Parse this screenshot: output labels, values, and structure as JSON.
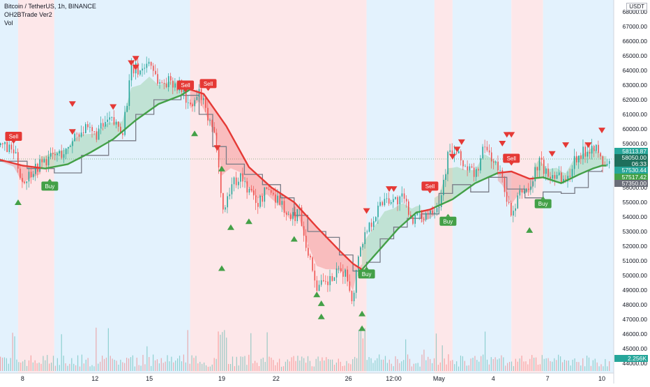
{
  "legend": {
    "symbol_line": "Bitcoin / TetherUS, 1h, BINANCE",
    "indicator_1": "OH2BTrade Ver2",
    "indicator_2": "Vol"
  },
  "currency": "USDT",
  "colors": {
    "up": "#26a69a",
    "down": "#ef5350",
    "buy": "#43a047",
    "sell": "#e53935",
    "trend_green": "#43a047",
    "trend_red": "#e53935",
    "step_line": "#787b86",
    "bg_blue": "#e3f2fd",
    "bg_red": "#fde7e9"
  },
  "chart_data": {
    "type": "candlestick",
    "title": "Bitcoin / TetherUS, 1h, BINANCE",
    "ylim": [
      44000,
      68500
    ],
    "y_ticks": [
      68000,
      67000,
      66000,
      65000,
      64000,
      63000,
      62000,
      61000,
      60000,
      59000,
      58000,
      57000,
      56000,
      55000,
      54000,
      53000,
      52000,
      51000,
      50000,
      49000,
      48000,
      47000,
      46000,
      45000,
      44000
    ],
    "y_tick_labels": [
      "68000.00",
      "67000.00",
      "66000.00",
      "65000.00",
      "64000.00",
      "63000.00",
      "62000.00",
      "61000.00",
      "60000.00",
      "59000.00",
      "58000.00",
      "57000.00",
      "56000.00",
      "55000.00",
      "54000.00",
      "53000.00",
      "52000.00",
      "51000.00",
      "50000.00",
      "49000.00",
      "48000.00",
      "47000.00",
      "46000.00",
      "45000.00",
      "44000.00"
    ],
    "x_ticks": [
      {
        "label": "8",
        "t": 5
      },
      {
        "label": "12",
        "t": 21
      },
      {
        "label": "15",
        "t": 33
      },
      {
        "label": "19",
        "t": 49
      },
      {
        "label": "22",
        "t": 61
      },
      {
        "label": "26",
        "t": 77
      },
      {
        "label": "12:00",
        "t": 87
      },
      {
        "label": "May",
        "t": 97
      },
      {
        "label": "4",
        "t": 109
      },
      {
        "label": "7",
        "t": 121
      },
      {
        "label": "10",
        "t": 133
      }
    ],
    "price_path": [
      {
        "t": 0,
        "v": 58900
      },
      {
        "t": 3,
        "v": 58400
      },
      {
        "t": 5,
        "v": 56300
      },
      {
        "t": 7,
        "v": 57200
      },
      {
        "t": 9,
        "v": 57700
      },
      {
        "t": 12,
        "v": 58200
      },
      {
        "t": 15,
        "v": 58500
      },
      {
        "t": 16,
        "v": 59500
      },
      {
        "t": 18,
        "v": 60000
      },
      {
        "t": 21,
        "v": 59600
      },
      {
        "t": 24,
        "v": 60600
      },
      {
        "t": 27,
        "v": 60000
      },
      {
        "t": 29,
        "v": 64100
      },
      {
        "t": 31,
        "v": 64000
      },
      {
        "t": 33,
        "v": 64700
      },
      {
        "t": 35,
        "v": 63100
      },
      {
        "t": 38,
        "v": 63300
      },
      {
        "t": 40,
        "v": 62800
      },
      {
        "t": 42,
        "v": 61300
      },
      {
        "t": 44,
        "v": 62500
      },
      {
        "t": 46,
        "v": 60500
      },
      {
        "t": 48,
        "v": 58800
      },
      {
        "t": 49,
        "v": 54200
      },
      {
        "t": 51,
        "v": 56200
      },
      {
        "t": 53,
        "v": 56800
      },
      {
        "t": 55,
        "v": 55700
      },
      {
        "t": 57,
        "v": 54900
      },
      {
        "t": 59,
        "v": 56000
      },
      {
        "t": 62,
        "v": 55000
      },
      {
        "t": 64,
        "v": 53700
      },
      {
        "t": 66,
        "v": 54500
      },
      {
        "t": 68,
        "v": 51500
      },
      {
        "t": 70,
        "v": 49200
      },
      {
        "t": 72,
        "v": 49400
      },
      {
        "t": 74,
        "v": 50000
      },
      {
        "t": 76,
        "v": 50300
      },
      {
        "t": 78,
        "v": 48300
      },
      {
        "t": 79,
        "v": 51500
      },
      {
        "t": 81,
        "v": 53200
      },
      {
        "t": 83,
        "v": 54300
      },
      {
        "t": 85,
        "v": 55400
      },
      {
        "t": 87,
        "v": 55100
      },
      {
        "t": 89,
        "v": 55200
      },
      {
        "t": 91,
        "v": 53900
      },
      {
        "t": 93,
        "v": 54000
      },
      {
        "t": 95,
        "v": 54500
      },
      {
        "t": 97,
        "v": 55000
      },
      {
        "t": 99,
        "v": 58400
      },
      {
        "t": 101,
        "v": 58200
      },
      {
        "t": 103,
        "v": 57300
      },
      {
        "t": 105,
        "v": 56900
      },
      {
        "t": 107,
        "v": 58800
      },
      {
        "t": 109,
        "v": 57800
      },
      {
        "t": 111,
        "v": 56500
      },
      {
        "t": 113,
        "v": 53800
      },
      {
        "t": 115,
        "v": 55800
      },
      {
        "t": 117,
        "v": 55900
      },
      {
        "t": 119,
        "v": 57900
      },
      {
        "t": 121,
        "v": 56700
      },
      {
        "t": 123,
        "v": 57100
      },
      {
        "t": 125,
        "v": 56300
      },
      {
        "t": 127,
        "v": 58100
      },
      {
        "t": 129,
        "v": 58400
      },
      {
        "t": 131,
        "v": 59000
      },
      {
        "t": 133,
        "v": 57600
      }
    ],
    "trend_line": [
      {
        "t": 0,
        "v": 57900
      },
      {
        "t": 5,
        "v": 57500
      },
      {
        "t": 10,
        "v": 57300
      },
      {
        "t": 15,
        "v": 57600
      },
      {
        "t": 20,
        "v": 58400
      },
      {
        "t": 25,
        "v": 59300
      },
      {
        "t": 30,
        "v": 60600
      },
      {
        "t": 35,
        "v": 61700
      },
      {
        "t": 40,
        "v": 62300
      },
      {
        "t": 42,
        "v": 62700
      },
      {
        "t": 45,
        "v": 62400
      },
      {
        "t": 50,
        "v": 60200
      },
      {
        "t": 55,
        "v": 57400
      },
      {
        "t": 60,
        "v": 56000
      },
      {
        "t": 65,
        "v": 55000
      },
      {
        "t": 70,
        "v": 53300
      },
      {
        "t": 75,
        "v": 51700
      },
      {
        "t": 78,
        "v": 50800
      },
      {
        "t": 80,
        "v": 50400
      },
      {
        "t": 84,
        "v": 51800
      },
      {
        "t": 88,
        "v": 53200
      },
      {
        "t": 92,
        "v": 54300
      },
      {
        "t": 95,
        "v": 54500
      },
      {
        "t": 100,
        "v": 55200
      },
      {
        "t": 105,
        "v": 56300
      },
      {
        "t": 110,
        "v": 57000
      },
      {
        "t": 113,
        "v": 57100
      },
      {
        "t": 117,
        "v": 56600
      },
      {
        "t": 120,
        "v": 56700
      },
      {
        "t": 124,
        "v": 56300
      },
      {
        "t": 128,
        "v": 56900
      },
      {
        "t": 131,
        "v": 57300
      },
      {
        "t": 133,
        "v": 57500
      }
    ],
    "trend_segments": [
      {
        "from": 0,
        "to": 9,
        "dir": "down"
      },
      {
        "from": 9,
        "to": 42,
        "dir": "up"
      },
      {
        "from": 42,
        "to": 80,
        "dir": "down"
      },
      {
        "from": 80,
        "to": 93,
        "dir": "up"
      },
      {
        "from": 93,
        "to": 96,
        "dir": "down"
      },
      {
        "from": 96,
        "to": 110,
        "dir": "up"
      },
      {
        "from": 110,
        "to": 118,
        "dir": "down"
      },
      {
        "from": 118,
        "to": 134,
        "dir": "up"
      }
    ],
    "step_line": [
      {
        "t": 0,
        "v": 57800
      },
      {
        "t": 6,
        "v": 57300
      },
      {
        "t": 12,
        "v": 57000
      },
      {
        "t": 18,
        "v": 58200
      },
      {
        "t": 24,
        "v": 59200
      },
      {
        "t": 30,
        "v": 61000
      },
      {
        "t": 34,
        "v": 62000
      },
      {
        "t": 40,
        "v": 62300
      },
      {
        "t": 44,
        "v": 61000
      },
      {
        "t": 47,
        "v": 58800
      },
      {
        "t": 50,
        "v": 57600
      },
      {
        "t": 54,
        "v": 56900
      },
      {
        "t": 58,
        "v": 56200
      },
      {
        "t": 62,
        "v": 55300
      },
      {
        "t": 65,
        "v": 54100
      },
      {
        "t": 68,
        "v": 53000
      },
      {
        "t": 72,
        "v": 52600
      },
      {
        "t": 75,
        "v": 51400
      },
      {
        "t": 78,
        "v": 50300
      },
      {
        "t": 81,
        "v": 50900
      },
      {
        "t": 84,
        "v": 52500
      },
      {
        "t": 87,
        "v": 53300
      },
      {
        "t": 90,
        "v": 53900
      },
      {
        "t": 93,
        "v": 54200
      },
      {
        "t": 97,
        "v": 55600
      },
      {
        "t": 100,
        "v": 56200
      },
      {
        "t": 104,
        "v": 55700
      },
      {
        "t": 108,
        "v": 56700
      },
      {
        "t": 112,
        "v": 55900
      },
      {
        "t": 116,
        "v": 55300
      },
      {
        "t": 120,
        "v": 55700
      },
      {
        "t": 124,
        "v": 55600
      },
      {
        "t": 127,
        "v": 56000
      },
      {
        "t": 130,
        "v": 57100
      },
      {
        "t": 133,
        "v": 57200
      }
    ],
    "background_bands": [
      {
        "from": 0,
        "to": 4,
        "dir": "up"
      },
      {
        "from": 4,
        "to": 12,
        "dir": "down"
      },
      {
        "from": 12,
        "to": 42,
        "dir": "up"
      },
      {
        "from": 42,
        "to": 81,
        "dir": "down"
      },
      {
        "from": 81,
        "to": 96,
        "dir": "up"
      },
      {
        "from": 96,
        "to": 100,
        "dir": "down"
      },
      {
        "from": 100,
        "to": 113,
        "dir": "up"
      },
      {
        "from": 113,
        "to": 120,
        "dir": "down"
      },
      {
        "from": 120,
        "to": 136,
        "dir": "up"
      }
    ],
    "signals": [
      {
        "type": "Sell",
        "t": 3,
        "v": 59000
      },
      {
        "type": "Buy",
        "t": 11,
        "v": 56600
      },
      {
        "type": "Sell",
        "t": 41,
        "v": 62500
      },
      {
        "type": "Sell",
        "t": 46,
        "v": 62600
      },
      {
        "type": "Buy",
        "t": 81,
        "v": 50600
      },
      {
        "type": "Sell",
        "t": 95,
        "v": 55600
      },
      {
        "type": "Buy",
        "t": 99,
        "v": 54200
      },
      {
        "type": "Sell",
        "t": 113,
        "v": 57500
      },
      {
        "type": "Buy",
        "t": 120,
        "v": 55400
      }
    ],
    "down_markers": [
      {
        "t": 16,
        "v": 61700
      },
      {
        "t": 16,
        "v": 59800
      },
      {
        "t": 25,
        "v": 61500
      },
      {
        "t": 29,
        "v": 64500
      },
      {
        "t": 30,
        "v": 64200
      },
      {
        "t": 30,
        "v": 64800
      },
      {
        "t": 48,
        "v": 58700
      },
      {
        "t": 81,
        "v": 54400
      },
      {
        "t": 86,
        "v": 55900
      },
      {
        "t": 87,
        "v": 55900
      },
      {
        "t": 100,
        "v": 58100
      },
      {
        "t": 101,
        "v": 58600
      },
      {
        "t": 102,
        "v": 59100
      },
      {
        "t": 111,
        "v": 59000
      },
      {
        "t": 112,
        "v": 59600
      },
      {
        "t": 113,
        "v": 59600
      },
      {
        "t": 122,
        "v": 58300
      },
      {
        "t": 125,
        "v": 58900
      },
      {
        "t": 130,
        "v": 58900
      },
      {
        "t": 133,
        "v": 59900
      }
    ],
    "up_markers": [
      {
        "t": 4,
        "v": 55000
      },
      {
        "t": 43,
        "v": 59700
      },
      {
        "t": 49,
        "v": 57300
      },
      {
        "t": 51,
        "v": 53300
      },
      {
        "t": 49,
        "v": 50500
      },
      {
        "t": 55,
        "v": 53700
      },
      {
        "t": 65,
        "v": 52500
      },
      {
        "t": 70,
        "v": 48700
      },
      {
        "t": 71,
        "v": 48100
      },
      {
        "t": 71,
        "v": 47200
      },
      {
        "t": 80,
        "v": 47400
      },
      {
        "t": 80,
        "v": 46400
      },
      {
        "t": 117,
        "v": 53100
      }
    ],
    "price_labels": [
      {
        "value": "58113.87",
        "kind": "up"
      },
      {
        "value": "58050.00",
        "kind": "dark"
      },
      {
        "value": "06:33",
        "kind": "dark"
      },
      {
        "value": "57530.44",
        "kind": "up"
      },
      {
        "value": "57517.42",
        "kind": "green"
      },
      {
        "value": "57350.00",
        "kind": "gray"
      },
      {
        "value": "2.256K",
        "kind": "up"
      }
    ],
    "volume_scale_label": "2.256K",
    "grid": false
  }
}
